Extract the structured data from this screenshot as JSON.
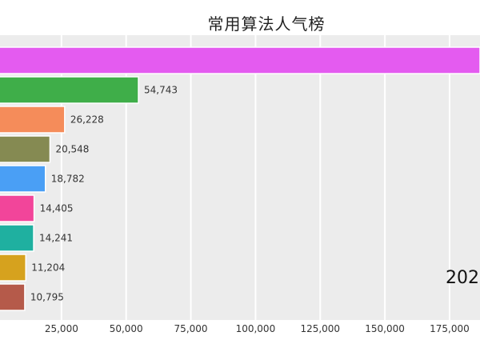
{
  "chart_data": {
    "type": "bar",
    "orientation": "horizontal",
    "title": "常用算法人气榜",
    "xlabel": "",
    "ylabel": "",
    "xlim": [
      0,
      190000
    ],
    "x_ticks": [
      25000,
      50000,
      75000,
      100000,
      125000,
      150000,
      175000
    ],
    "x_tick_labels": [
      "25,000",
      "50,000",
      "75,000",
      "100,000",
      "125,000",
      "150,000",
      "175,000"
    ],
    "grid": "vertical",
    "values": [
      200000,
      54743,
      26228,
      20548,
      18782,
      14405,
      14241,
      11204,
      10795
    ],
    "value_labels": [
      "",
      "54,743",
      "26,228",
      "20,548",
      "18,782",
      "14,405",
      "14,241",
      "11,204",
      "10,795"
    ],
    "colors": [
      "#e45bf0",
      "#3fae49",
      "#f58c5a",
      "#858a52",
      "#4a9ff5",
      "#f2459a",
      "#1fb0a0",
      "#d6a21e",
      "#b55a4a"
    ],
    "year_label": "202"
  }
}
